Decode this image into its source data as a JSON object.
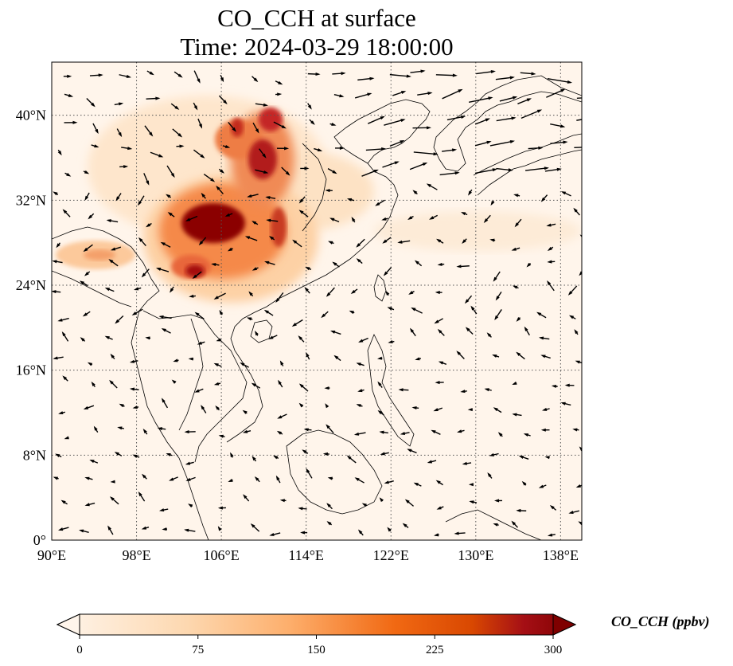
{
  "title": {
    "line1": "CO_CCH at surface",
    "line2": "Time: 2024-03-29 18:00:00"
  },
  "map": {
    "lon_range": [
      90,
      140
    ],
    "lat_range": [
      0,
      45
    ],
    "lon_ticks": [
      "90°E",
      "98°E",
      "106°E",
      "114°E",
      "122°E",
      "130°E",
      "138°E"
    ],
    "lat_ticks": [
      "0°",
      "8°N",
      "16°N",
      "24°N",
      "32°N",
      "40°N"
    ],
    "gridlines": true,
    "field": "CO_CCH",
    "vector_overlay": "wind-arrows"
  },
  "colorbar": {
    "label": "CO_CCH (ppbv)",
    "ticks": [
      "0",
      "75",
      "150",
      "225",
      "300"
    ],
    "range": [
      0,
      300
    ],
    "extend": "both",
    "colors": [
      "#fff5eb",
      "#fdd8b0",
      "#fdae6b",
      "#f16913",
      "#d94801",
      "#a50f15",
      "#7f0000"
    ]
  }
}
